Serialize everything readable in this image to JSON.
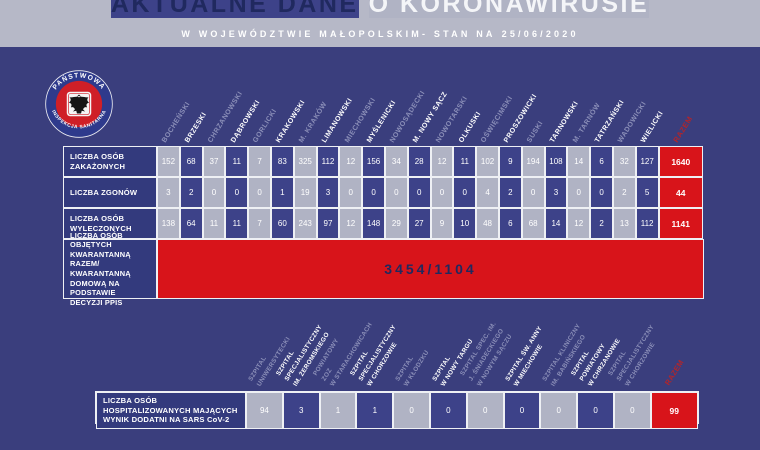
{
  "header": {
    "title_dark": "AKTUALNE DANE",
    "title_light": "O KORONAWIRUSIE",
    "subtitle": "W WOJEWÓDZTWIE MAŁOPOLSKIM- STAN NA",
    "date": "25/06/2020"
  },
  "logo": {
    "top_text": "PAŃSTWOWA",
    "bottom_text": "INSPEKCJA SANITARNA"
  },
  "colors": {
    "background": "#3a3e7d",
    "top_band": "#b6b8c7",
    "navy_text": "#20295f",
    "light_cell": "#b0b3c4",
    "dark_cell": "#3d4289",
    "label_cell": "#333a7d",
    "accent_red": "#d8141a",
    "total_header_red": "#b2252b"
  },
  "chart_data": [
    {
      "type": "table",
      "columns": [
        "BOCHEŃSKI",
        "BRZESKI",
        "CHRZANOWSKI",
        "DĄBROWSKI",
        "GORLICKI",
        "KRAKOWSKI",
        "M. KRAKÓW",
        "LIMANOWSKI",
        "MIECHOWSKI",
        "MYŚLENICKI",
        "NOWOSĄDECKI",
        "M. NOWY SĄCZ",
        "NOWOTARSKI",
        "OLKUSKI",
        "OŚWIĘCIMSKI",
        "PROSZOWICKI",
        "SUSKI",
        "TARNOWSKI",
        "M. TARNÓW",
        "TATRZAŃSKI",
        "WADOWICKI",
        "WIELICKI"
      ],
      "total_label": "RAZEM",
      "rows": [
        {
          "label": "LICZBA OSÓB ZAKAŻONYCH",
          "values": [
            152,
            68,
            37,
            11,
            7,
            83,
            325,
            112,
            12,
            156,
            34,
            28,
            12,
            11,
            102,
            9,
            194,
            108,
            14,
            6,
            32,
            127
          ],
          "total": 1640
        },
        {
          "label": "LICZBA ZGONÓW",
          "values": [
            3,
            2,
            0,
            0,
            0,
            1,
            19,
            3,
            0,
            0,
            0,
            0,
            0,
            0,
            4,
            2,
            0,
            3,
            0,
            0,
            2,
            5
          ],
          "total": 44
        },
        {
          "label": "LICZBA OSÓB WYLECZONYCH",
          "values": [
            138,
            64,
            11,
            11,
            7,
            60,
            243,
            97,
            12,
            148,
            29,
            27,
            9,
            10,
            48,
            6,
            68,
            14,
            12,
            2,
            13,
            112
          ],
          "total": 1141
        }
      ],
      "quarantine_row": {
        "label": "LICZBA OSÓB OBJĘTYCH KWARANTANNĄ RAZEM/ KWARANTANNĄ DOMOWĄ NA PODSTAWIE DECYZJI PPIS",
        "value": "3454/1104"
      }
    },
    {
      "type": "table",
      "columns": [
        "SZPITAL\nUNIWERSYTECKI",
        "SZPITAL\nSPECJALISTYCZNY\nIM. ŻEROMSKIEGO",
        "POWIATOWY\nZOZ\nW STARACHOWICACH",
        "SZPITAL\nSPECJALISTYCZNY\nW CHORZOWIE",
        "SZPITAL\nW KŁODZKU",
        "SZPITAL\nW NOWY TARGU",
        "SZPITAL SPEC. IM.\nJ. ŚNIADECKIEGO\nW NOWYM SĄCZU",
        "SZPITAL ŚW. ANNY\nW MIECHOWIE",
        "SZPITAL KLINICZNY\nIM. BABIŃSKIEGO",
        "SZPITAL\nPOWIATOWY\nW CHRZANOWIE",
        "SZPITAL\nSPECJALISTYCZNY\nW CHORZOWIE"
      ],
      "total_label": "RAZEM",
      "rows": [
        {
          "label": "LICZBA OSÓB HOSPITALIZOWANYCH MAJĄCYCH WYNIK DODATNI NA SARS CoV-2",
          "values": [
            94,
            3,
            1,
            1,
            0,
            0,
            0,
            0,
            0,
            0,
            0
          ],
          "total": 99
        }
      ]
    }
  ]
}
